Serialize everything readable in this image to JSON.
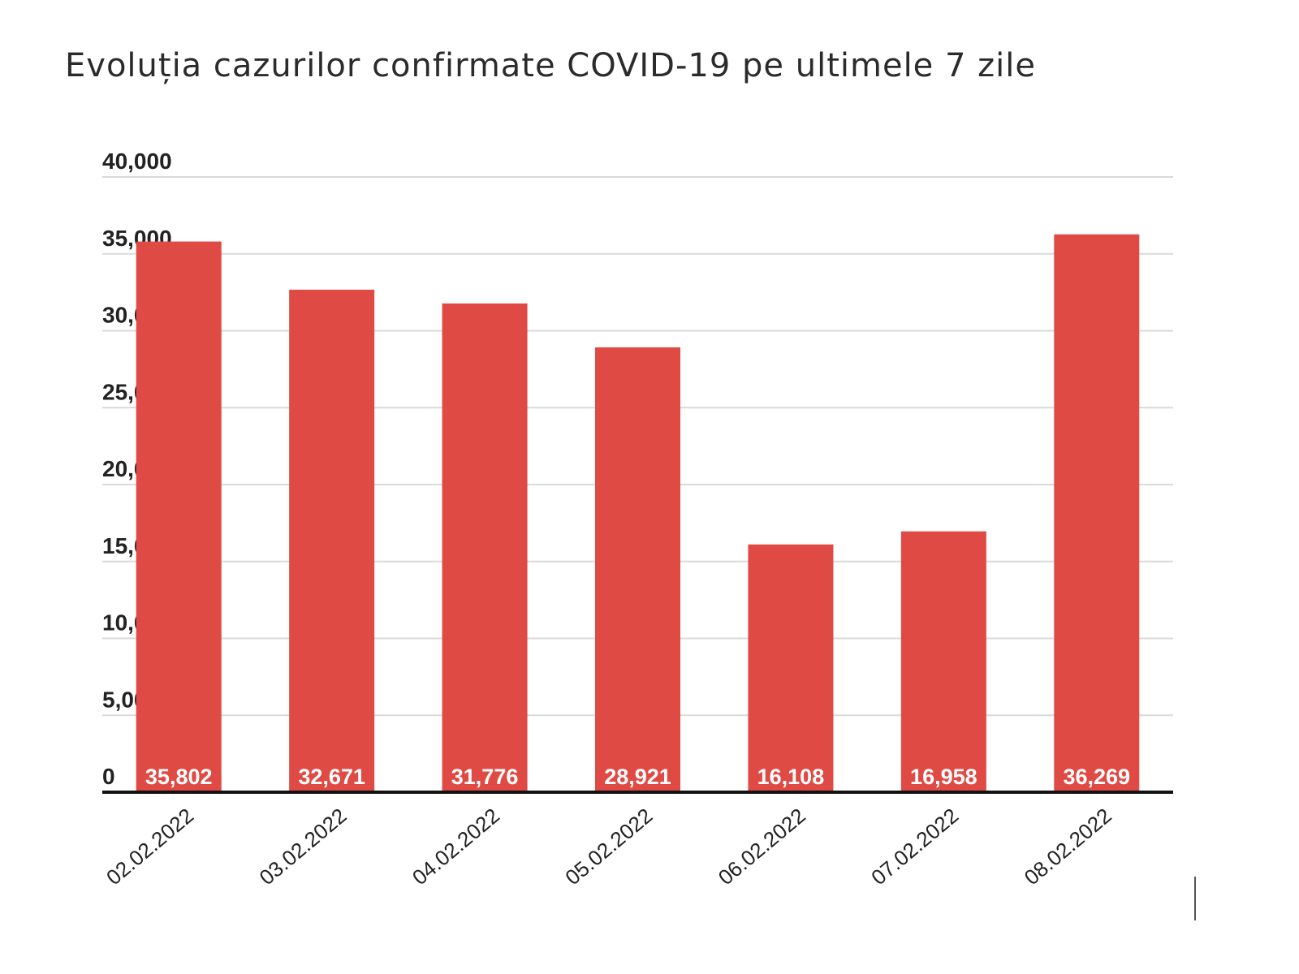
{
  "title": "Evoluția cazurilor confirmate COVID-19 pe ultimele 7 zile",
  "colors": {
    "bar": "#e04a44",
    "grid": "#d9d9d9",
    "axis": "#111111"
  },
  "chart_data": {
    "type": "bar",
    "title": "Evoluția cazurilor confirmate COVID-19 pe ultimele 7 zile",
    "categories": [
      "02.02.2022",
      "03.02.2022",
      "04.02.2022",
      "05.02.2022",
      "06.02.2022",
      "07.02.2022",
      "08.02.2022"
    ],
    "values": [
      35802,
      32671,
      31776,
      28921,
      16108,
      16958,
      36269
    ],
    "value_labels": [
      "35,802",
      "32,671",
      "31,776",
      "28,921",
      "16,108",
      "16,958",
      "36,269"
    ],
    "yticks": [
      0,
      5000,
      10000,
      15000,
      20000,
      25000,
      30000,
      35000,
      40000
    ],
    "ytick_labels": [
      "0",
      "5,000",
      "10,000",
      "15,000",
      "20,000",
      "25,000",
      "30,000",
      "35,000",
      "40,000"
    ],
    "ylim": [
      0,
      40000
    ],
    "xlabel": "",
    "ylabel": "",
    "grid": true,
    "legend": "none"
  }
}
